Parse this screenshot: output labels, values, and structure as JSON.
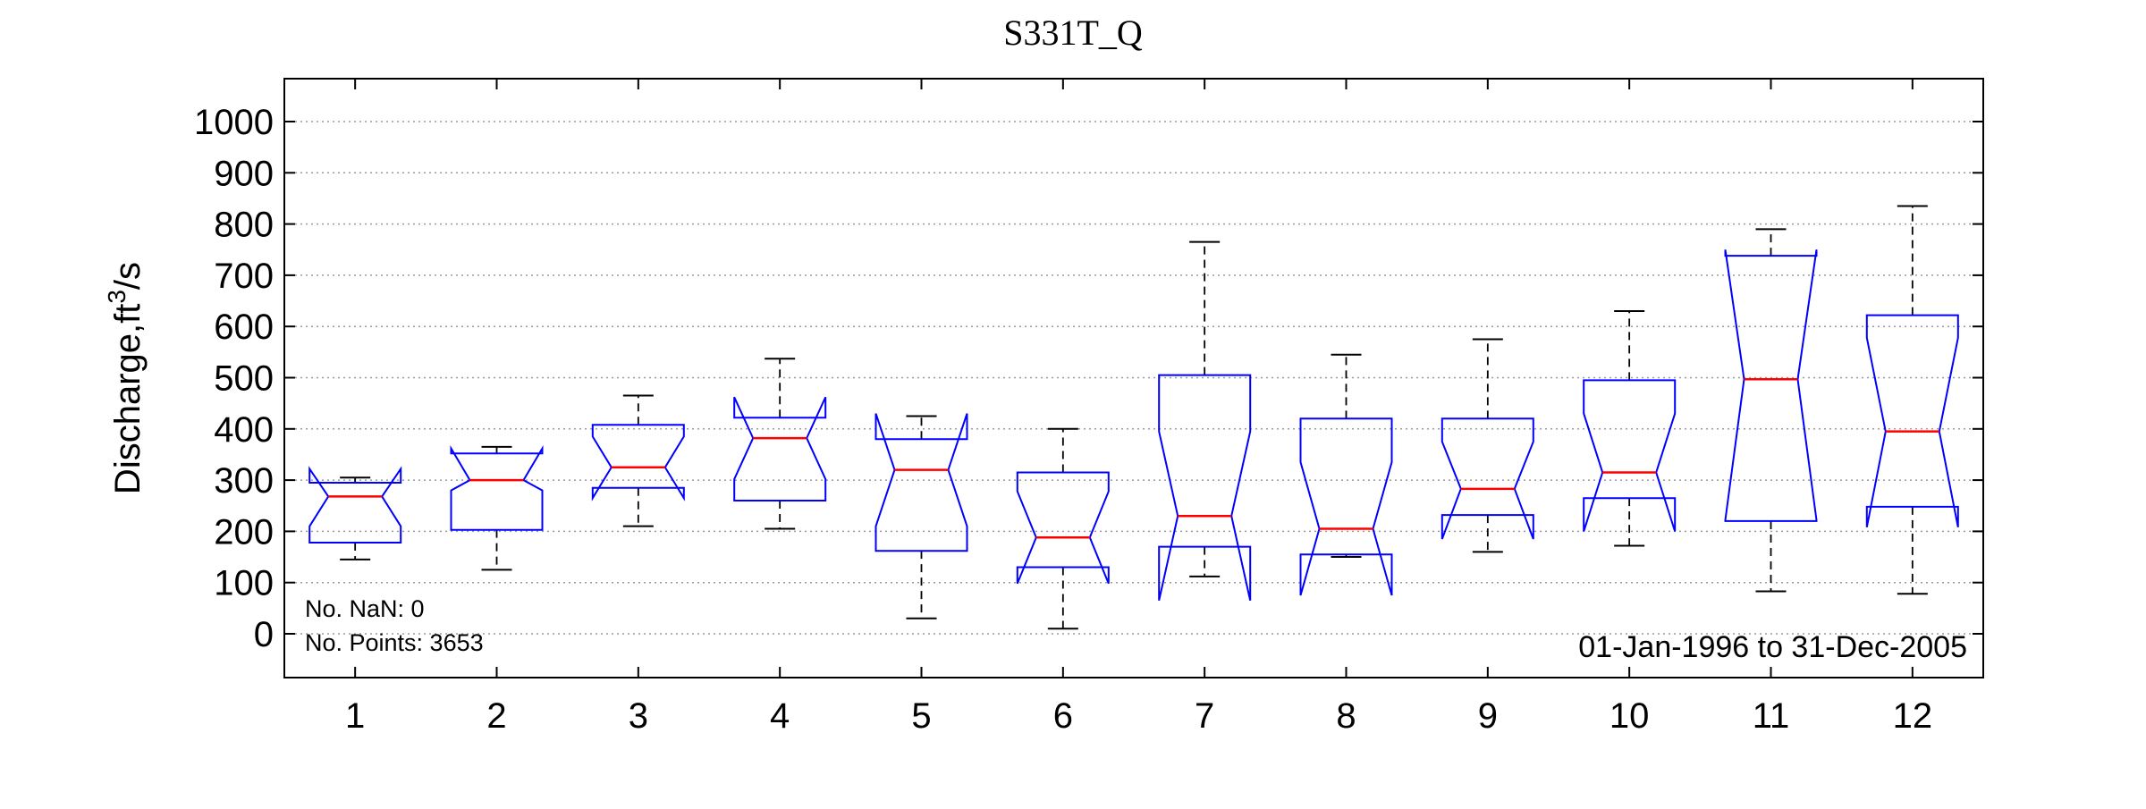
{
  "chart_data": {
    "type": "box",
    "notched": true,
    "title": "S331T_Q",
    "xlabel": "",
    "ylabel": "Discharge,ft",
    "ylabel_superscript": "3",
    "ylabel_suffix": "/s",
    "ylim": [
      -90,
      1080
    ],
    "yticks": [
      0,
      100,
      200,
      300,
      400,
      500,
      600,
      700,
      800,
      900,
      1000
    ],
    "grid": "horizontal dotted",
    "categories": [
      "1",
      "2",
      "3",
      "4",
      "5",
      "6",
      "7",
      "8",
      "9",
      "10",
      "11",
      "12"
    ],
    "boxes": [
      {
        "min": 145,
        "q1": 178,
        "median": 268,
        "q3": 295,
        "max": 305,
        "notch_low": 210,
        "notch_high": 322
      },
      {
        "min": 125,
        "q1": 203,
        "median": 300,
        "q3": 352,
        "max": 365,
        "notch_low": 280,
        "notch_high": 362
      },
      {
        "min": 210,
        "q1": 285,
        "median": 325,
        "q3": 408,
        "max": 465,
        "notch_low": 265,
        "notch_high": 385
      },
      {
        "min": 205,
        "q1": 260,
        "median": 382,
        "q3": 422,
        "max": 537,
        "notch_low": 302,
        "notch_high": 462
      },
      {
        "min": 30,
        "q1": 162,
        "median": 320,
        "q3": 380,
        "max": 425,
        "notch_low": 210,
        "notch_high": 430
      },
      {
        "min": 10,
        "q1": 130,
        "median": 188,
        "q3": 315,
        "max": 400,
        "notch_low": 98,
        "notch_high": 278
      },
      {
        "min": 112,
        "q1": 170,
        "median": 230,
        "q3": 505,
        "max": 765,
        "notch_low": 65,
        "notch_high": 395
      },
      {
        "min": 150,
        "q1": 155,
        "median": 205,
        "q3": 420,
        "max": 545,
        "notch_low": 75,
        "notch_high": 335
      },
      {
        "min": 160,
        "q1": 232,
        "median": 283,
        "q3": 420,
        "max": 575,
        "notch_low": 185,
        "notch_high": 375
      },
      {
        "min": 172,
        "q1": 265,
        "median": 315,
        "q3": 495,
        "max": 630,
        "notch_low": 200,
        "notch_high": 430
      },
      {
        "min": 83,
        "q1": 220,
        "median": 497,
        "q3": 738,
        "max": 790,
        "notch_low": 222,
        "notch_high": 750
      },
      {
        "min": 78,
        "q1": 248,
        "median": 395,
        "q3": 622,
        "max": 835,
        "notch_low": 208,
        "notch_high": 578
      }
    ],
    "annotations": {
      "nan_label": "No. NaN: 0",
      "points_label": "No. Points: 3653",
      "date_range": "01-Jan-1996 to 31-Dec-2005"
    },
    "colors": {
      "box": "#0000ff",
      "median": "#ff0000",
      "whisker": "#000000",
      "grid": "#9a9a9a"
    }
  }
}
